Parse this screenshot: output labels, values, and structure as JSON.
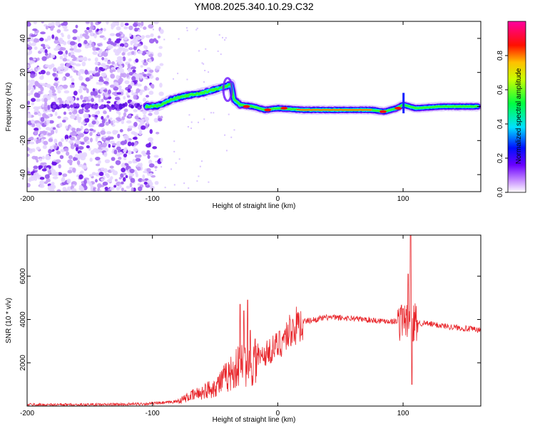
{
  "title": "YM08.2025.340.10.29.C32",
  "chart_data": [
    {
      "type": "heatmap",
      "xlabel": "Height of straight line (km)",
      "ylabel": "Frequency (Hz)",
      "xlim": [
        -200,
        162
      ],
      "ylim": [
        -50,
        50
      ],
      "xticks": [
        -200,
        -100,
        0,
        100
      ],
      "yticks": [
        -40,
        -20,
        0,
        20,
        40
      ],
      "colorbar": {
        "label": "Normalized spectral amplitude",
        "range": [
          0,
          1
        ],
        "ticks": [
          "0.0",
          "0.2",
          "0.4",
          "0.6",
          "0.8"
        ],
        "tick_values": [
          0,
          0.2,
          0.4,
          0.6,
          0.8
        ],
        "colors": [
          "#ffffff",
          "#6a00ff",
          "#0000ff",
          "#00ffff",
          "#00ff00",
          "#ffff00",
          "#ff0000",
          "#ff00ff"
        ]
      },
      "ridge": {
        "description": "frequency of dominant energy vs height",
        "points": [
          [
            -105,
            0
          ],
          [
            -95,
            0.5
          ],
          [
            -85,
            4
          ],
          [
            -75,
            6
          ],
          [
            -60,
            8
          ],
          [
            -45,
            11
          ],
          [
            -37,
            13
          ],
          [
            -35,
            4
          ],
          [
            -30,
            1
          ],
          [
            -20,
            0
          ],
          [
            -10,
            -2
          ],
          [
            0,
            -1
          ],
          [
            20,
            -2
          ],
          [
            40,
            -2
          ],
          [
            60,
            -2
          ],
          [
            75,
            -2
          ],
          [
            85,
            -3
          ],
          [
            95,
            -1
          ],
          [
            100,
            1
          ],
          [
            110,
            -1
          ],
          [
            130,
            0
          ],
          [
            160,
            0
          ]
        ],
        "noise_region_x": [
          -200,
          -90
        ]
      }
    },
    {
      "type": "line",
      "xlabel": "Height of straight line (km)",
      "ylabel": "SNR (10 * v/v)",
      "xlim": [
        -200,
        162
      ],
      "ylim": [
        0,
        7900
      ],
      "xticks": [
        -200,
        -100,
        0,
        100
      ],
      "yticks": [
        2000,
        4000,
        6000
      ],
      "series": [
        {
          "name": "SNR",
          "color": "#e8252a",
          "envelope": [
            [
              -200,
              60
            ],
            [
              -150,
              60
            ],
            [
              -120,
              80
            ],
            [
              -100,
              120
            ],
            [
              -90,
              150
            ],
            [
              -80,
              220
            ],
            [
              -70,
              450
            ],
            [
              -60,
              650
            ],
            [
              -50,
              900
            ],
            [
              -40,
              1400
            ],
            [
              -30,
              1900
            ],
            [
              -20,
              2000
            ],
            [
              -10,
              2400
            ],
            [
              0,
              2800
            ],
            [
              10,
              3500
            ],
            [
              20,
              3900
            ],
            [
              30,
              4000
            ],
            [
              40,
              4100
            ],
            [
              60,
              4050
            ],
            [
              80,
              3950
            ],
            [
              100,
              3900
            ],
            [
              120,
              3800
            ],
            [
              140,
              3650
            ],
            [
              162,
              3500
            ]
          ],
          "spikes": [
            [
              -30,
              4700
            ],
            [
              -27,
              4400
            ],
            [
              -24,
              4900
            ],
            [
              -22,
              3500
            ],
            [
              -18,
              3100
            ],
            [
              100,
              4500
            ],
            [
              104,
              6100
            ],
            [
              106,
              7900
            ],
            [
              107,
              1000
            ],
            [
              108,
              3000
            ]
          ]
        }
      ]
    }
  ]
}
